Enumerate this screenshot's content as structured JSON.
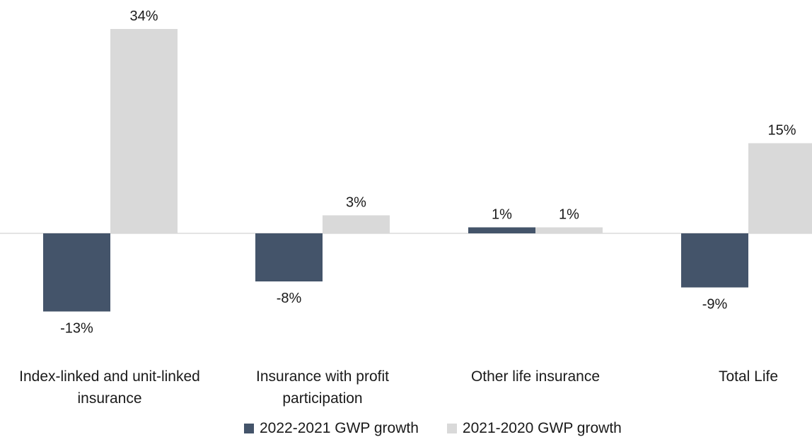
{
  "colors": {
    "series_2022": "#44546a",
    "series_2021": "#d9d9d9",
    "axis": "#c8c8c8"
  },
  "chart_data": {
    "type": "bar",
    "categories": [
      [
        "Index-linked and unit-linked",
        "insurance"
      ],
      [
        "Insurance with profit",
        "participation"
      ],
      [
        "Other life insurance"
      ],
      [
        "Total Life"
      ]
    ],
    "series": [
      {
        "name": "2022-2021 GWP growth",
        "values": [
          -13,
          -8,
          1,
          -9
        ],
        "labels": [
          "-13%",
          "-8%",
          "1%",
          "-9%"
        ]
      },
      {
        "name": "2021-2020 GWP growth",
        "values": [
          34,
          3,
          1,
          15
        ],
        "labels": [
          "34%",
          "3%",
          "1%",
          "15%"
        ]
      }
    ],
    "unit": "%",
    "ylim": [
      -13,
      34
    ],
    "grid": false,
    "legend_position": "bottom"
  }
}
